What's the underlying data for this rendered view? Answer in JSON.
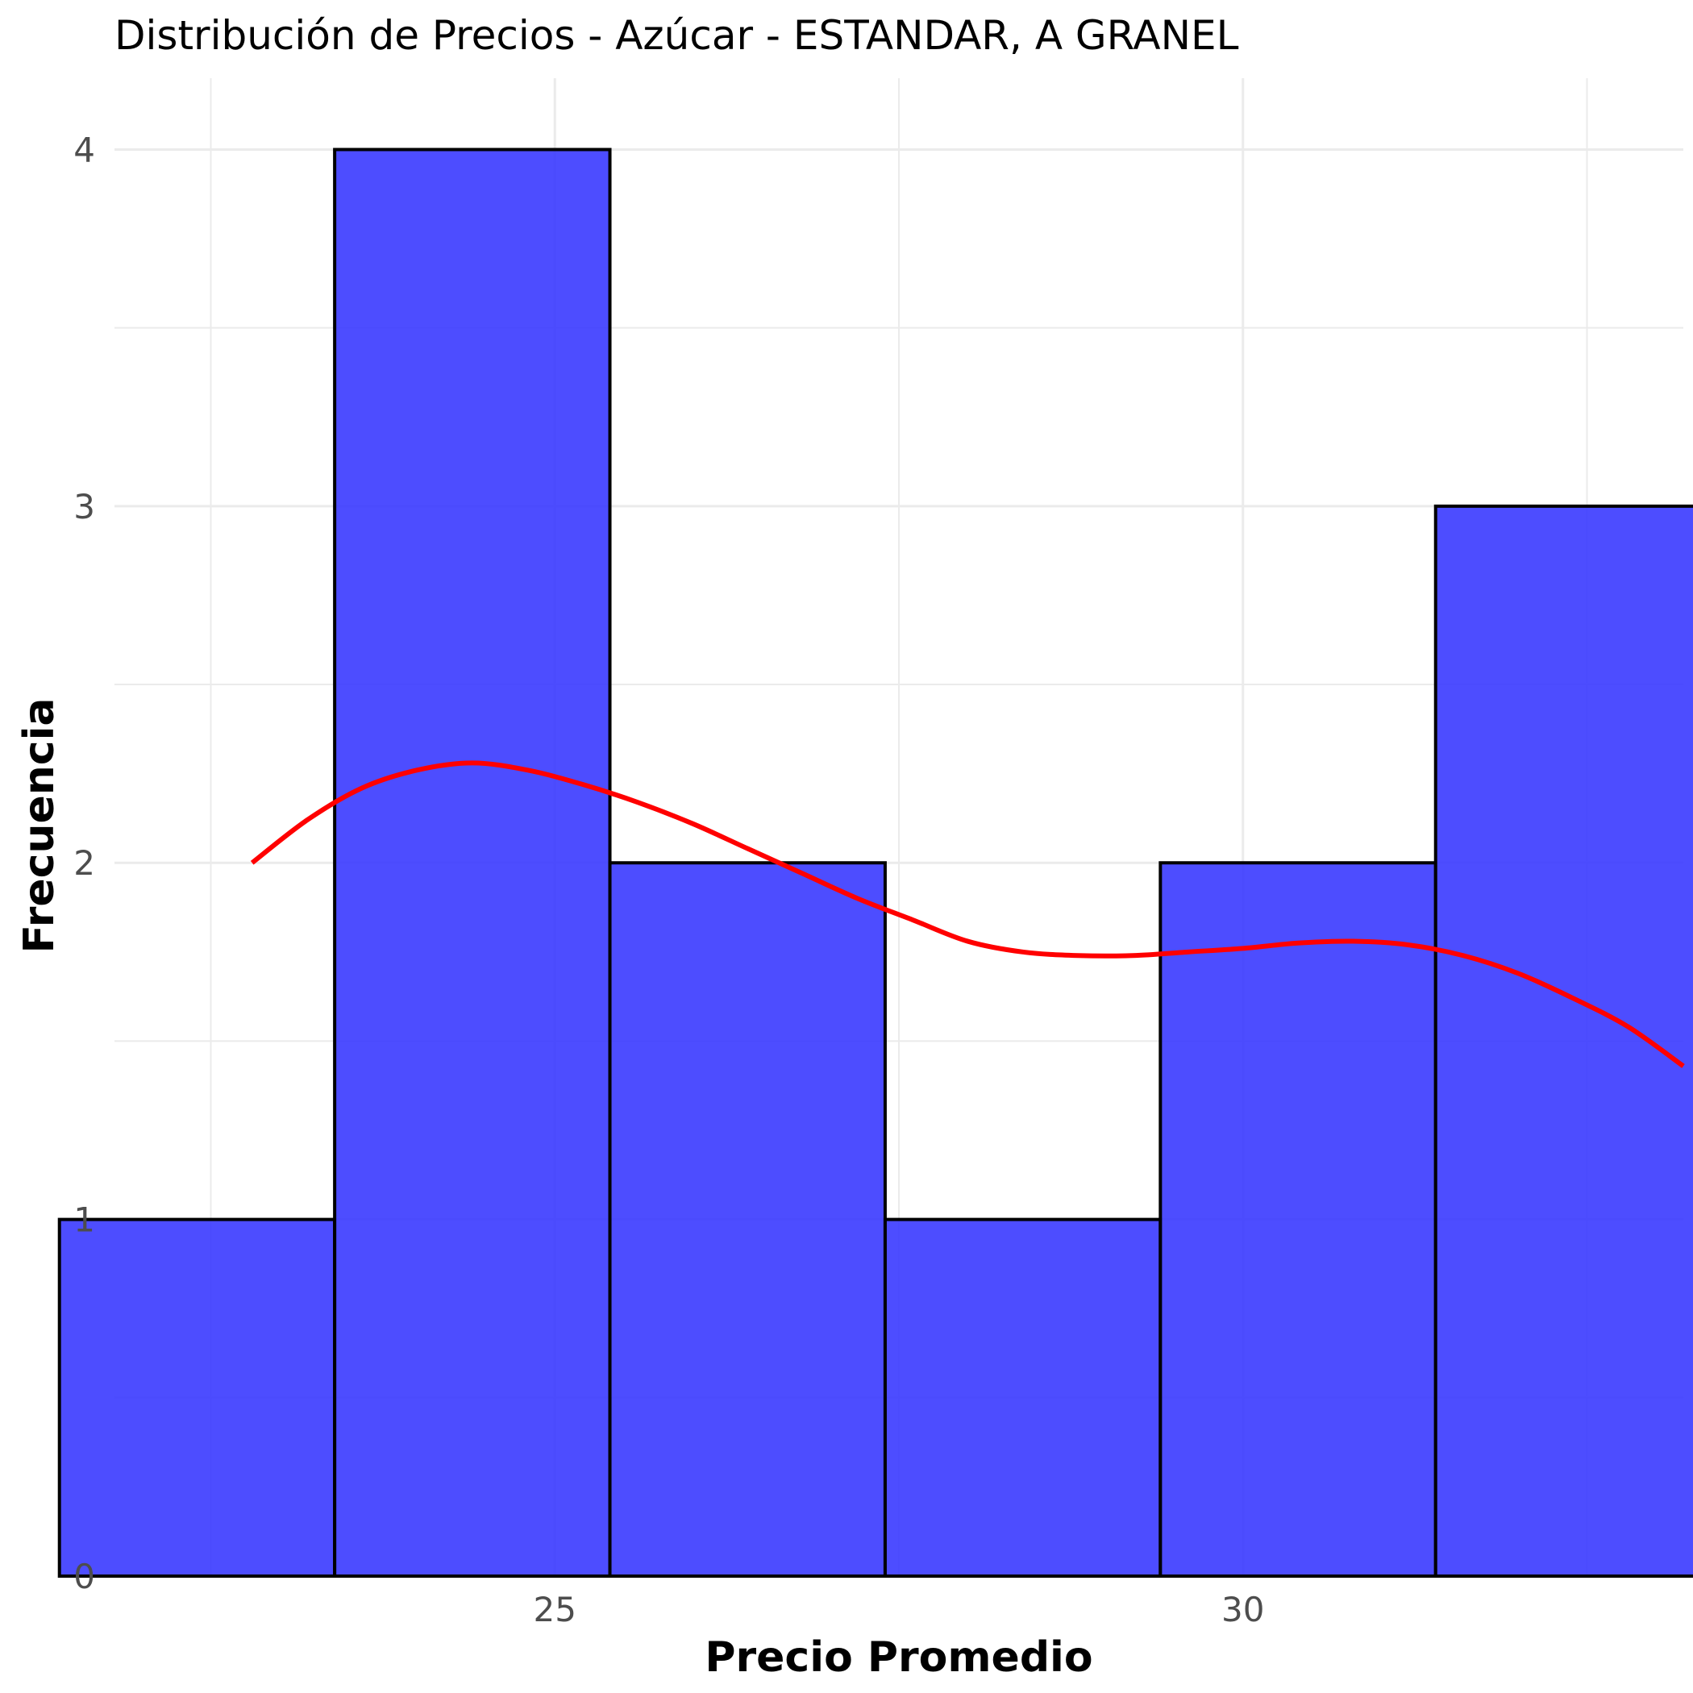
{
  "chart_data": {
    "type": "bar",
    "subtype": "histogram-with-density",
    "title": "Distribución de Precios - Azúcar - ESTANDAR, A GRANEL",
    "xlabel": "Precio Promedio",
    "ylabel": "Frecuencia",
    "xlim": [
      21.8,
      33.2
    ],
    "ylim": [
      0,
      4.2
    ],
    "x_ticks": [
      25,
      30
    ],
    "x_tick_labels": [
      "25",
      "30"
    ],
    "x_minor_ticks": [
      22.5,
      27.5,
      32.5
    ],
    "y_ticks": [
      0,
      1,
      2,
      3,
      4
    ],
    "y_tick_labels": [
      "0",
      "1",
      "2",
      "3",
      "4"
    ],
    "y_minor_ticks": [
      0.5,
      1.5,
      2.5,
      3.5
    ],
    "grid": true,
    "bins": [
      {
        "x0": 21.4,
        "x1": 23.4,
        "count": 1
      },
      {
        "x0": 23.4,
        "x1": 25.4,
        "count": 4
      },
      {
        "x0": 25.4,
        "x1": 27.4,
        "count": 2
      },
      {
        "x0": 27.4,
        "x1": 29.4,
        "count": 1
      },
      {
        "x0": 29.4,
        "x1": 31.4,
        "count": 2
      },
      {
        "x0": 31.4,
        "x1": 33.4,
        "count": 3
      }
    ],
    "density_curve": {
      "x": [
        22.8,
        23.2,
        23.6,
        24.0,
        24.4,
        24.8,
        25.2,
        25.6,
        26.0,
        26.4,
        26.8,
        27.2,
        27.6,
        28.0,
        28.4,
        28.8,
        29.2,
        29.6,
        30.0,
        30.4,
        30.8,
        31.2,
        31.6,
        32.0,
        32.4,
        32.8,
        33.2
      ],
      "y": [
        2.0,
        2.12,
        2.21,
        2.26,
        2.28,
        2.26,
        2.22,
        2.17,
        2.11,
        2.04,
        1.97,
        1.9,
        1.84,
        1.78,
        1.75,
        1.74,
        1.74,
        1.75,
        1.76,
        1.775,
        1.78,
        1.77,
        1.74,
        1.69,
        1.62,
        1.54,
        1.43
      ]
    },
    "colors": {
      "bar_fill": "#3333ff",
      "bar_outline": "#000000",
      "density_line": "#ff0000",
      "grid": "#ebebeb",
      "background": "#ffffff"
    }
  }
}
